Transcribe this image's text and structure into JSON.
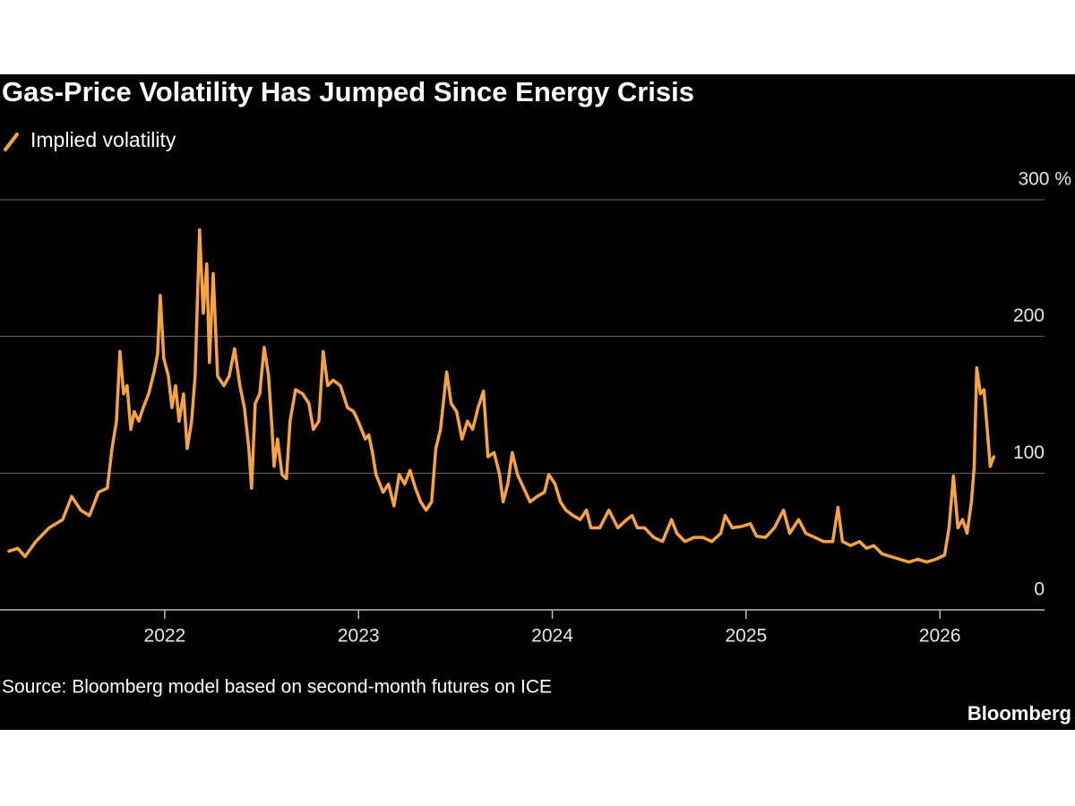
{
  "chart_data": {
    "type": "line",
    "title": "Gas-Price Volatility Has Jumped Since Energy Crisis",
    "source": "Source: Bloomberg model based on second-month futures on ICE",
    "brand": "Bloomberg",
    "x": [
      2021.196,
      2021.242,
      2021.279,
      2021.335,
      2021.404,
      2021.473,
      2021.52,
      2021.566,
      2021.612,
      2021.658,
      2021.704,
      2021.728,
      2021.751,
      2021.769,
      2021.788,
      2021.806,
      2021.825,
      2021.843,
      2021.866,
      2021.889,
      2021.917,
      2021.945,
      2021.963,
      2021.977,
      2021.995,
      2022.019,
      2022.037,
      2022.056,
      2022.074,
      2022.097,
      2022.116,
      2022.139,
      2022.157,
      2022.18,
      2022.199,
      2022.217,
      2022.231,
      2022.25,
      2022.273,
      2022.305,
      2022.333,
      2022.36,
      2022.388,
      2022.411,
      2022.434,
      2022.448,
      2022.467,
      2022.49,
      2022.513,
      2022.536,
      2022.554,
      2022.564,
      2022.582,
      2022.605,
      2022.628,
      2022.647,
      2022.675,
      2022.712,
      2022.744,
      2022.767,
      2022.795,
      2022.818,
      2022.841,
      2022.869,
      2022.906,
      2022.943,
      2022.975,
      2022.998,
      2023.035,
      2023.053,
      2023.072,
      2023.09,
      2023.127,
      2023.155,
      2023.183,
      2023.21,
      2023.238,
      2023.266,
      2023.294,
      2023.321,
      2023.349,
      2023.377,
      2023.399,
      2023.423,
      2023.455,
      2023.478,
      2023.506,
      2023.534,
      2023.562,
      2023.589,
      2023.617,
      2023.645,
      2023.668,
      2023.7,
      2023.728,
      2023.746,
      2023.77,
      2023.793,
      2023.82,
      2023.853,
      2023.885,
      2023.922,
      2023.959,
      2023.982,
      2024.014,
      2024.042,
      2024.07,
      2024.107,
      2024.144,
      2024.176,
      2024.199,
      2024.245,
      2024.292,
      2024.338,
      2024.384,
      2024.412,
      2024.439,
      2024.476,
      2024.523,
      2024.569,
      2024.615,
      2024.643,
      2024.684,
      2024.731,
      2024.777,
      2024.823,
      2024.869,
      2024.892,
      2024.929,
      2024.975,
      2025.022,
      2025.054,
      2025.1,
      2025.146,
      2025.193,
      2025.225,
      2025.271,
      2025.308,
      2025.354,
      2025.4,
      2025.447,
      2025.474,
      2025.497,
      2025.539,
      2025.585,
      2025.622,
      2025.659,
      2025.701,
      2025.747,
      2025.793,
      2025.839,
      2025.886,
      2025.932,
      2025.978,
      2026.024,
      2026.047,
      2026.07,
      2026.093,
      2026.117,
      2026.14,
      2026.163,
      2026.177,
      2026.19,
      2026.209,
      2026.227,
      2026.241,
      2026.26,
      2026.278
    ],
    "series": [
      {
        "name": "Implied volatility",
        "color": "#f7a43f",
        "values": [
          43,
          45,
          39,
          50,
          60,
          66,
          83,
          73,
          69,
          86,
          89,
          118,
          138,
          189,
          158,
          164,
          132,
          145,
          138,
          148,
          158,
          174,
          187,
          230,
          184,
          171,
          148,
          164,
          138,
          158,
          118,
          138,
          171,
          278,
          217,
          253,
          181,
          246,
          171,
          164,
          171,
          191,
          164,
          148,
          118,
          89,
          151,
          158,
          192,
          171,
          132,
          105,
          125,
          99,
          96,
          138,
          161,
          158,
          151,
          132,
          138,
          189,
          164,
          168,
          164,
          148,
          145,
          138,
          125,
          128,
          115,
          99,
          86,
          92,
          76,
          99,
          92,
          102,
          89,
          79,
          73,
          79,
          118,
          132,
          174,
          151,
          145,
          125,
          138,
          132,
          148,
          160,
          112,
          115,
          99,
          79,
          92,
          115,
          99,
          89,
          79,
          83,
          86,
          99,
          92,
          79,
          73,
          69,
          66,
          73,
          60,
          60,
          73,
          60,
          66,
          69,
          60,
          60,
          53,
          50,
          66,
          56,
          50,
          53,
          53,
          50,
          56,
          69,
          60,
          61,
          63,
          54,
          53,
          60,
          73,
          56,
          66,
          56,
          53,
          50,
          50,
          75,
          50,
          47,
          50,
          45,
          47,
          41,
          39,
          37,
          35,
          37,
          35,
          37,
          40,
          60,
          98,
          60,
          66,
          56,
          79,
          105,
          177,
          158,
          161,
          138,
          105,
          112
        ]
      }
    ],
    "xlim": [
      2021.15,
      2026.54
    ],
    "xticks": [
      2022,
      2023,
      2024,
      2025,
      2026
    ],
    "ylim": [
      0,
      300
    ],
    "yticks": [
      0,
      100,
      200,
      {
        "value": 300,
        "label": "300 %"
      }
    ],
    "grid": true
  }
}
